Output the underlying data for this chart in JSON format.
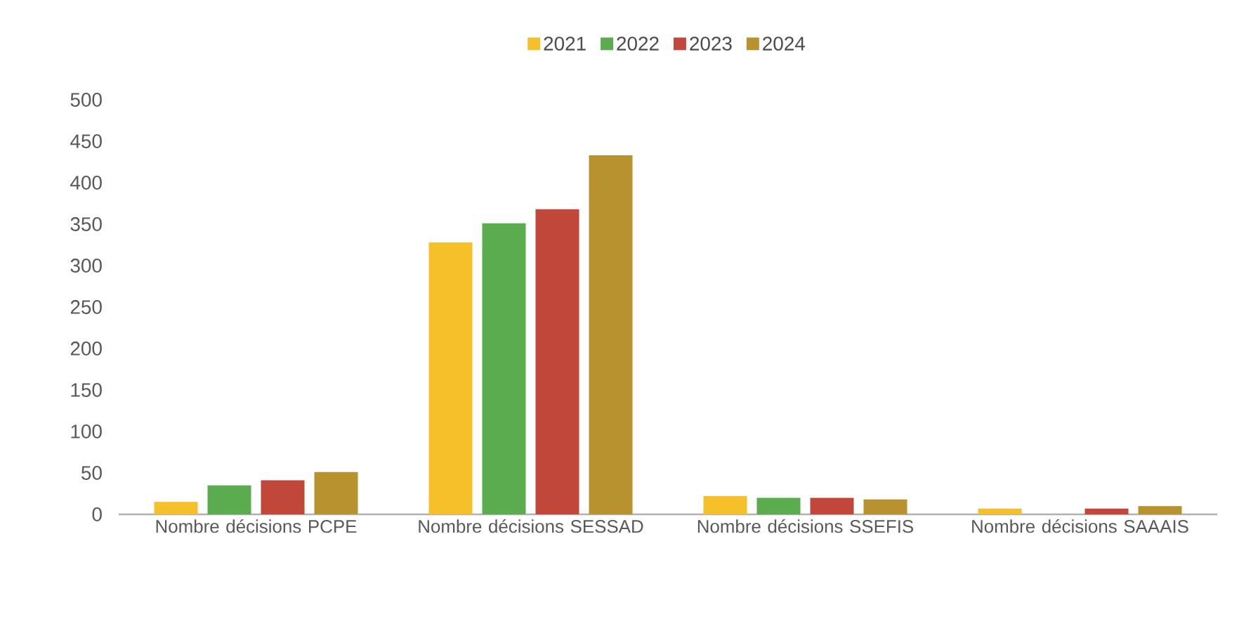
{
  "chart_data": {
    "type": "bar",
    "categories": [
      "Nombre décisions PCPE",
      "Nombre décisions SESSAD",
      "Nombre décisions SSEFIS",
      "Nombre décisions SAAAIS"
    ],
    "series": [
      {
        "name": "2021",
        "color": "#f5c02a",
        "values": [
          15,
          328,
          22,
          7
        ]
      },
      {
        "name": "2022",
        "color": "#5aac4e",
        "values": [
          35,
          351,
          20,
          0
        ]
      },
      {
        "name": "2023",
        "color": "#c0473a",
        "values": [
          41,
          368,
          20,
          7
        ]
      },
      {
        "name": "2024",
        "color": "#b8922e",
        "values": [
          51,
          433,
          18,
          10
        ]
      }
    ],
    "ylim": [
      0,
      500
    ],
    "yticks": [
      0,
      50,
      100,
      150,
      200,
      250,
      300,
      350,
      400,
      450,
      500
    ],
    "legend": "top"
  }
}
